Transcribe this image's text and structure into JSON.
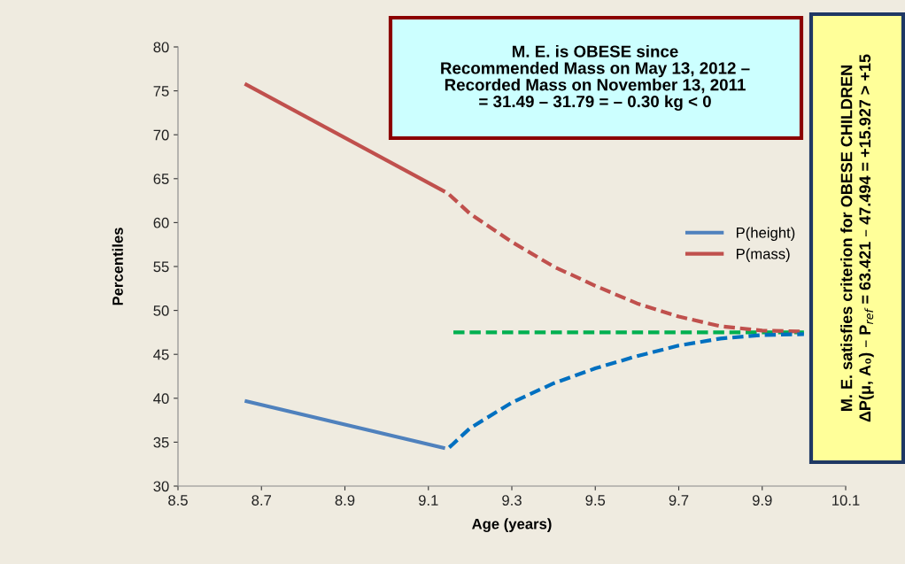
{
  "chart_data": {
    "type": "line",
    "xlabel": "Age (years)",
    "ylabel": "Percentiles",
    "xlim": [
      8.5,
      10.1
    ],
    "xticks": [
      8.5,
      8.7,
      8.9,
      9.1,
      9.3,
      9.5,
      9.7,
      9.9,
      10.1
    ],
    "ylim": [
      30,
      80
    ],
    "yticks": [
      30,
      35,
      40,
      45,
      50,
      55,
      60,
      65,
      70,
      75,
      80
    ],
    "grid": false,
    "legend": "right",
    "series": [
      {
        "name": "P(height)",
        "color": "#4f81bd",
        "line_style": "solid",
        "x": [
          8.66,
          9.14
        ],
        "values": [
          39.7,
          34.3
        ]
      },
      {
        "name": "P(mass)",
        "color": "#c0504d",
        "line_style": "solid",
        "x": [
          8.66,
          9.14
        ],
        "values": [
          75.8,
          63.5
        ]
      },
      {
        "color": "#0070c0",
        "line_style": "dashed",
        "x": [
          9.15,
          9.2,
          9.3,
          9.4,
          9.5,
          9.6,
          9.7,
          9.8,
          9.9,
          10.0
        ],
        "values": [
          34.4,
          36.6,
          39.5,
          41.7,
          43.4,
          44.8,
          46.0,
          46.8,
          47.2,
          47.3
        ]
      },
      {
        "color": "#c0504d",
        "line_style": "dashed",
        "x": [
          9.15,
          9.2,
          9.3,
          9.4,
          9.5,
          9.6,
          9.7,
          9.8,
          9.9,
          10.0
        ],
        "values": [
          63.2,
          61.0,
          57.8,
          55.0,
          52.8,
          50.8,
          49.3,
          48.2,
          47.7,
          47.6
        ]
      },
      {
        "color": "#00b050",
        "line_style": "dashed",
        "x": [
          9.16,
          10.0
        ],
        "values": [
          47.5,
          47.5
        ]
      }
    ],
    "annotations": [
      "M. E. is OBESE since\nRecommended Mass on May 13, 2012 –\nRecorded Mass on November 13, 2011\n= 31.49 – 31.79 = – 0.30 kg < 0",
      "M. E. satisfies criterion for OBESE CHILDREN\nΔP(μ, A₀) – P$_{ref}$ = 63.421 – 47.494 = +15.927 > +15"
    ]
  }
}
